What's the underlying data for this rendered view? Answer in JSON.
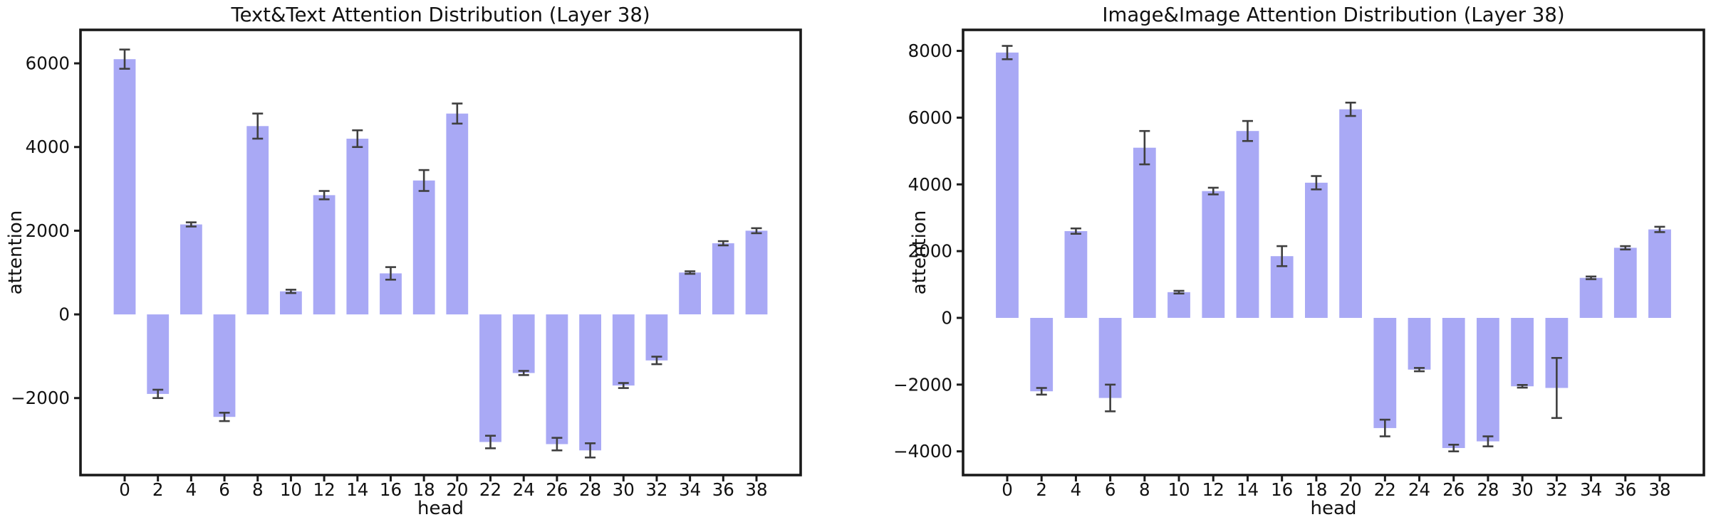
{
  "figure": {
    "background": "#ffffff",
    "bar_color": "#a9a9f5",
    "error_color": "#3f3f3f",
    "axis_color": "#1a1a1a"
  },
  "chart_data": [
    {
      "type": "bar",
      "title": "Text&Text Attention Distribution (Layer 38)",
      "xlabel": "head",
      "ylabel": "attention",
      "categories": [
        0,
        2,
        4,
        6,
        8,
        10,
        12,
        14,
        16,
        18,
        20,
        22,
        24,
        26,
        28,
        30,
        32,
        34,
        36,
        38
      ],
      "values": [
        6100,
        -1900,
        2150,
        -2450,
        4500,
        550,
        2850,
        4200,
        980,
        3200,
        4800,
        -3050,
        -1400,
        -3100,
        -3250,
        -1700,
        -1100,
        1000,
        1700,
        2000
      ],
      "errors": [
        230,
        100,
        50,
        100,
        300,
        40,
        100,
        200,
        150,
        250,
        240,
        150,
        50,
        150,
        170,
        60,
        90,
        30,
        50,
        60
      ],
      "yticks": [
        -2000,
        0,
        2000,
        4000,
        6000
      ],
      "ylim": [
        -3840,
        6800
      ],
      "grid": false,
      "legend": null
    },
    {
      "type": "bar",
      "title": "Image&Image Attention Distribution (Layer 38)",
      "xlabel": "head",
      "ylabel": "attention",
      "categories": [
        0,
        2,
        4,
        6,
        8,
        10,
        12,
        14,
        16,
        18,
        20,
        22,
        24,
        26,
        28,
        30,
        32,
        34,
        36,
        38
      ],
      "values": [
        7950,
        -2200,
        2600,
        -2400,
        5100,
        770,
        3800,
        5600,
        1850,
        4050,
        6250,
        -3300,
        -1550,
        -3900,
        -3700,
        -2050,
        -2100,
        1200,
        2100,
        2650
      ],
      "errors": [
        200,
        100,
        80,
        400,
        500,
        40,
        100,
        300,
        300,
        200,
        200,
        250,
        50,
        100,
        150,
        40,
        900,
        40,
        50,
        80
      ],
      "yticks": [
        -4000,
        -2000,
        0,
        2000,
        4000,
        6000,
        8000
      ],
      "ylim": [
        -4710,
        8630
      ],
      "grid": false,
      "legend": null
    }
  ]
}
